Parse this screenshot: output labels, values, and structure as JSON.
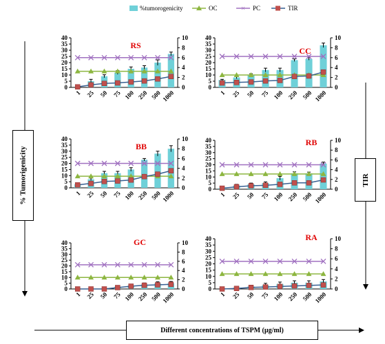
{
  "figure": {
    "y_axis_label": "% Tumorigenicity",
    "right_axis_label": "TIR",
    "x_axis_label": "Different concentrations of TSPM (µg/ml)"
  },
  "legend": {
    "placement": "top-center",
    "entries": [
      "%tumorogenicity",
      "OC",
      "PC",
      "TIR"
    ]
  },
  "colors": {
    "bar": "#6fd0d8",
    "oc": "#8db640",
    "pc": "#a070c0",
    "tir_line": "#365f91",
    "tir_marker": "#c0504d",
    "title": "#e00000"
  },
  "chart_data": [
    {
      "type": "bar",
      "title": "RS",
      "categories": [
        "1",
        "25",
        "50",
        "75",
        "100",
        "250",
        "500",
        "1000"
      ],
      "left_ticks": [
        "0",
        "5",
        "10",
        "15",
        "20",
        "25",
        "30",
        "35",
        "40"
      ],
      "right_ticks": [
        "0",
        "2",
        "4",
        "6",
        "8",
        "10"
      ],
      "ylim": [
        0,
        40
      ],
      "y2lim": [
        0,
        10
      ],
      "series": [
        {
          "name": "%tumorogenicity",
          "axis": "left",
          "values": [
            0,
            5,
            9,
            12,
            15,
            16,
            20,
            27
          ],
          "errors": [
            0,
            1.5,
            1.2,
            1.5,
            1.5,
            1.5,
            2.2,
            1.5
          ]
        },
        {
          "name": "OC",
          "axis": "left",
          "values": [
            13,
            13,
            13,
            13,
            13,
            13,
            13,
            13
          ]
        },
        {
          "name": "PC",
          "axis": "left",
          "values": [
            24,
            24,
            24,
            24,
            24,
            24,
            24,
            24
          ]
        },
        {
          "name": "TIR",
          "axis": "right",
          "values": [
            0.1,
            0.5,
            0.8,
            0.9,
            1.1,
            1.3,
            1.7,
            2.2
          ]
        }
      ]
    },
    {
      "type": "bar",
      "title": "CC",
      "categories": [
        "1",
        "25",
        "50",
        "75",
        "100",
        "250",
        "500",
        "1000"
      ],
      "left_ticks": [
        "0",
        "5",
        "10",
        "15",
        "20",
        "25",
        "30",
        "35",
        "40"
      ],
      "right_ticks": [
        "0",
        "2",
        "4",
        "6",
        "8",
        "10"
      ],
      "ylim": [
        0,
        40
      ],
      "y2lim": [
        0,
        10
      ],
      "series": [
        {
          "name": "%tumorogenicity",
          "axis": "left",
          "values": [
            6,
            8,
            10,
            14,
            14,
            22,
            23,
            34
          ],
          "errors": [
            0.5,
            1,
            1,
            1.5,
            1.5,
            1,
            1,
            1.8
          ]
        },
        {
          "name": "OC",
          "axis": "left",
          "values": [
            10,
            10,
            10,
            10,
            10,
            10,
            10,
            10
          ]
        },
        {
          "name": "PC",
          "axis": "left",
          "values": [
            25,
            25,
            25,
            25,
            25,
            25,
            25,
            25
          ]
        },
        {
          "name": "TIR",
          "axis": "right",
          "values": [
            0.9,
            1.0,
            1.1,
            1.3,
            1.4,
            2.2,
            2.3,
            3.1
          ]
        }
      ]
    },
    {
      "type": "bar",
      "title": "BB",
      "categories": [
        "1",
        "25",
        "50",
        "75",
        "100",
        "250",
        "500",
        "1000"
      ],
      "left_ticks": [
        "0",
        "5",
        "10",
        "15",
        "20",
        "25",
        "30",
        "35",
        "40"
      ],
      "right_ticks": [
        "0",
        "2",
        "4",
        "6",
        "8",
        "10"
      ],
      "ylim": [
        0,
        40
      ],
      "y2lim": [
        0,
        10
      ],
      "series": [
        {
          "name": "%tumorogenicity",
          "axis": "left",
          "values": [
            3,
            7,
            12,
            12,
            15,
            23,
            28,
            32
          ],
          "errors": [
            0.5,
            1,
            1.5,
            1.5,
            1.5,
            1,
            2,
            2.5
          ]
        },
        {
          "name": "OC",
          "axis": "left",
          "values": [
            9.5,
            9.5,
            9.5,
            9.5,
            9.5,
            9.5,
            9.5,
            9.5
          ]
        },
        {
          "name": "PC",
          "axis": "left",
          "values": [
            20,
            20,
            20,
            20,
            20,
            20,
            20,
            20
          ]
        },
        {
          "name": "TIR",
          "axis": "right",
          "values": [
            0.6,
            0.9,
            1.3,
            1.4,
            1.6,
            2.3,
            2.8,
            3.5
          ]
        }
      ]
    },
    {
      "type": "bar",
      "title": "RB",
      "categories": [
        "1",
        "25",
        "50",
        "75",
        "100",
        "250",
        "500",
        "1000"
      ],
      "left_ticks": [
        "0",
        "5",
        "10",
        "15",
        "20",
        "25",
        "30",
        "35",
        "40"
      ],
      "right_ticks": [
        "0",
        "2",
        "4",
        "6",
        "8",
        "10"
      ],
      "ylim": [
        0,
        40
      ],
      "y2lim": [
        0,
        10
      ],
      "series": [
        {
          "name": "%tumorogenicity",
          "axis": "left",
          "values": [
            1,
            3,
            4,
            5,
            9,
            13,
            13,
            21
          ],
          "errors": [
            0.3,
            1,
            1,
            1,
            1.5,
            1.2,
            1,
            1.2
          ]
        },
        {
          "name": "OC",
          "axis": "left",
          "values": [
            12.5,
            12.5,
            12.5,
            12.5,
            12.5,
            12.5,
            12.5,
            12.5
          ]
        },
        {
          "name": "PC",
          "axis": "left",
          "values": [
            20,
            20,
            20,
            20,
            20,
            20,
            20,
            20
          ]
        },
        {
          "name": "TIR",
          "axis": "right",
          "values": [
            0.2,
            0.5,
            0.7,
            0.8,
            1.0,
            1.3,
            1.3,
            1.9
          ]
        }
      ]
    },
    {
      "type": "bar",
      "title": "GC",
      "categories": [
        "1",
        "25",
        "50",
        "75",
        "100",
        "250",
        "500",
        "1000"
      ],
      "left_ticks": [
        "0",
        "5",
        "10",
        "15",
        "20",
        "25",
        "30",
        "35",
        "40"
      ],
      "right_ticks": [
        "0",
        "2",
        "4",
        "6",
        "8",
        "10"
      ],
      "ylim": [
        0,
        40
      ],
      "y2lim": [
        0,
        10
      ],
      "series": [
        {
          "name": "%tumorogenicity",
          "axis": "left",
          "values": [
            0,
            0,
            0,
            2,
            3,
            4,
            5,
            5
          ],
          "errors": [
            0,
            0,
            0,
            1,
            1,
            1.2,
            1.2,
            1.5
          ]
        },
        {
          "name": "OC",
          "axis": "left",
          "values": [
            10,
            10,
            10,
            10,
            10,
            10,
            10,
            10
          ]
        },
        {
          "name": "PC",
          "axis": "left",
          "values": [
            21,
            21,
            21,
            21,
            21,
            21,
            21,
            21
          ]
        },
        {
          "name": "TIR",
          "axis": "right",
          "values": [
            0,
            0,
            0,
            0.3,
            0.6,
            0.8,
            0.9,
            1.0
          ]
        }
      ]
    },
    {
      "type": "bar",
      "title": "RA",
      "categories": [
        "1",
        "25",
        "50",
        "75",
        "100",
        "250",
        "500",
        "1000"
      ],
      "left_ticks": [
        "0",
        "5",
        "10",
        "15",
        "20",
        "25",
        "30",
        "35",
        "40"
      ],
      "right_ticks": [
        "0",
        "2",
        "4",
        "6",
        "8",
        "10"
      ],
      "ylim": [
        0,
        40
      ],
      "y2lim": [
        0,
        10
      ],
      "series": [
        {
          "name": "%tumorogenicity",
          "axis": "left",
          "values": [
            0,
            1,
            2,
            3,
            4,
            5,
            5,
            6
          ],
          "errors": [
            0,
            0.5,
            1,
            1.5,
            1.5,
            1.5,
            1.5,
            1.5
          ]
        },
        {
          "name": "OC",
          "axis": "left",
          "values": [
            12,
            12,
            12,
            12,
            12,
            12,
            12,
            12
          ]
        },
        {
          "name": "PC",
          "axis": "left",
          "values": [
            22,
            22,
            22,
            22,
            22,
            22,
            22,
            22
          ]
        },
        {
          "name": "TIR",
          "axis": "right",
          "values": [
            0,
            0.1,
            0.3,
            0.4,
            0.5,
            0.6,
            0.7,
            0.8
          ]
        }
      ]
    }
  ]
}
